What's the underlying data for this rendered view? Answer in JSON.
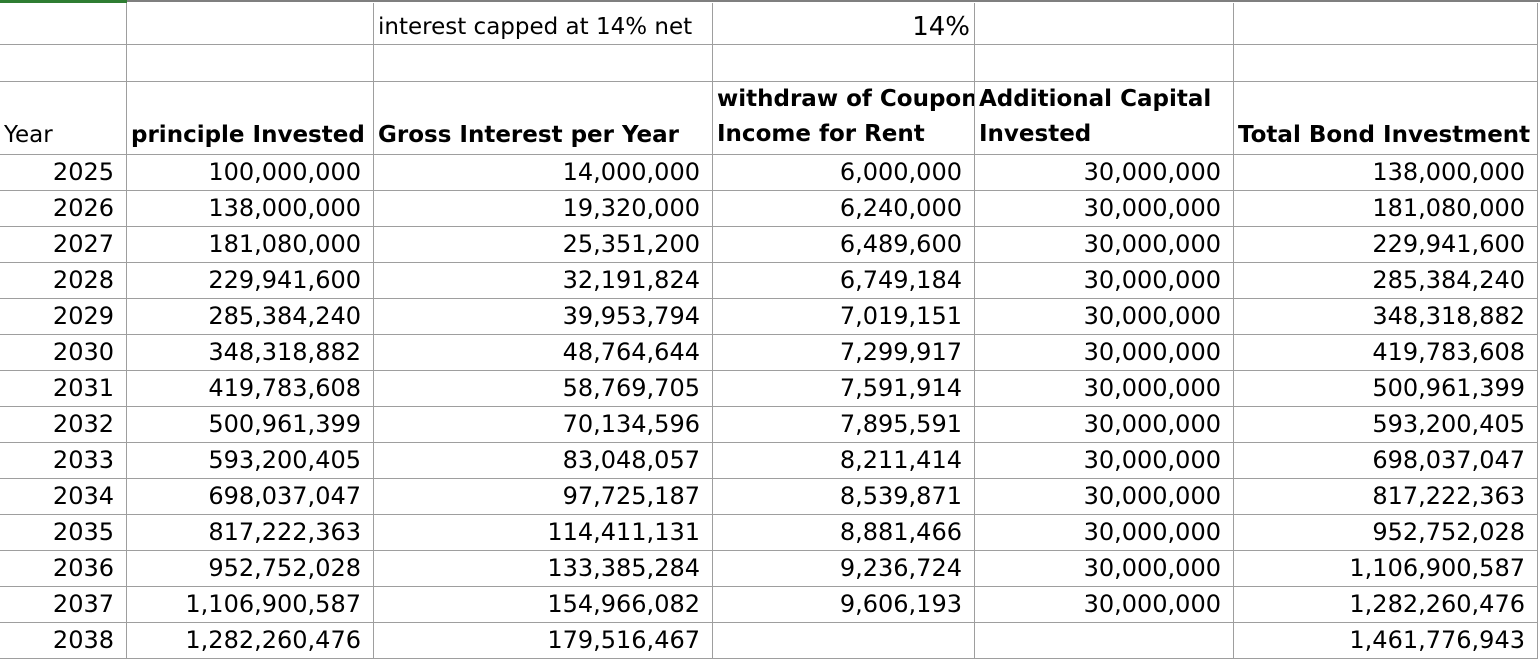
{
  "top_row": {
    "note": "interest capped at 14% net",
    "rate": "14%"
  },
  "headers": {
    "year": "Year",
    "principal": "principle Invested",
    "gross": "Gross Interest per Year",
    "withdraw_line1": "withdraw of Coupon",
    "withdraw_line2": "Income for Rent",
    "additional_line1": "Additional Capital",
    "additional_line2": "Invested",
    "total": "Total Bond Investment"
  },
  "rows": [
    [
      "2025",
      "100,000,000",
      "14,000,000",
      "6,000,000",
      "30,000,000",
      "138,000,000"
    ],
    [
      "2026",
      "138,000,000",
      "19,320,000",
      "6,240,000",
      "30,000,000",
      "181,080,000"
    ],
    [
      "2027",
      "181,080,000",
      "25,351,200",
      "6,489,600",
      "30,000,000",
      "229,941,600"
    ],
    [
      "2028",
      "229,941,600",
      "32,191,824",
      "6,749,184",
      "30,000,000",
      "285,384,240"
    ],
    [
      "2029",
      "285,384,240",
      "39,953,794",
      "7,019,151",
      "30,000,000",
      "348,318,882"
    ],
    [
      "2030",
      "348,318,882",
      "48,764,644",
      "7,299,917",
      "30,000,000",
      "419,783,608"
    ],
    [
      "2031",
      "419,783,608",
      "58,769,705",
      "7,591,914",
      "30,000,000",
      "500,961,399"
    ],
    [
      "2032",
      "500,961,399",
      "70,134,596",
      "7,895,591",
      "30,000,000",
      "593,200,405"
    ],
    [
      "2033",
      "593,200,405",
      "83,048,057",
      "8,211,414",
      "30,000,000",
      "698,037,047"
    ],
    [
      "2034",
      "698,037,047",
      "97,725,187",
      "8,539,871",
      "30,000,000",
      "817,222,363"
    ],
    [
      "2035",
      "817,222,363",
      "114,411,131",
      "8,881,466",
      "30,000,000",
      "952,752,028"
    ],
    [
      "2036",
      "952,752,028",
      "133,385,284",
      "9,236,724",
      "30,000,000",
      "1,106,900,587"
    ],
    [
      "2037",
      "1,106,900,587",
      "154,966,082",
      "9,606,193",
      "30,000,000",
      "1,282,260,476"
    ],
    [
      "2038",
      "1,282,260,476",
      "179,516,467",
      "",
      "",
      "1,461,776,943"
    ]
  ]
}
